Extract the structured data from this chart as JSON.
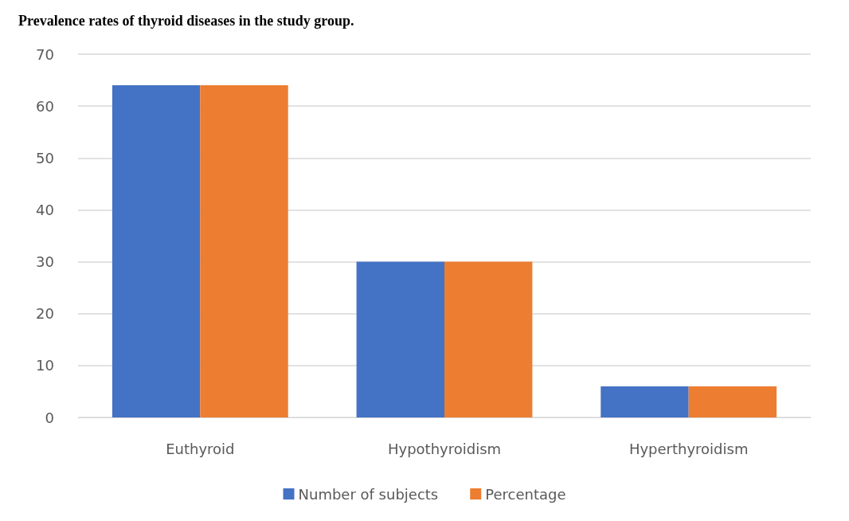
{
  "chart_data": {
    "type": "bar",
    "title": "Prevalence rates of thyroid diseases in the study group.",
    "categories": [
      "Euthyroid",
      "Hypothyroidism",
      "Hyperthyroidism"
    ],
    "series": [
      {
        "name": "Number of subjects",
        "color": "#4472c4",
        "values": [
          64,
          30,
          6
        ]
      },
      {
        "name": "Percentage",
        "color": "#ed7d31",
        "values": [
          64,
          30,
          6
        ]
      }
    ],
    "ylim": [
      0,
      70
    ],
    "yticks": [
      0,
      10,
      20,
      30,
      40,
      50,
      60,
      70
    ],
    "grid": "y",
    "legend": "bottom"
  }
}
